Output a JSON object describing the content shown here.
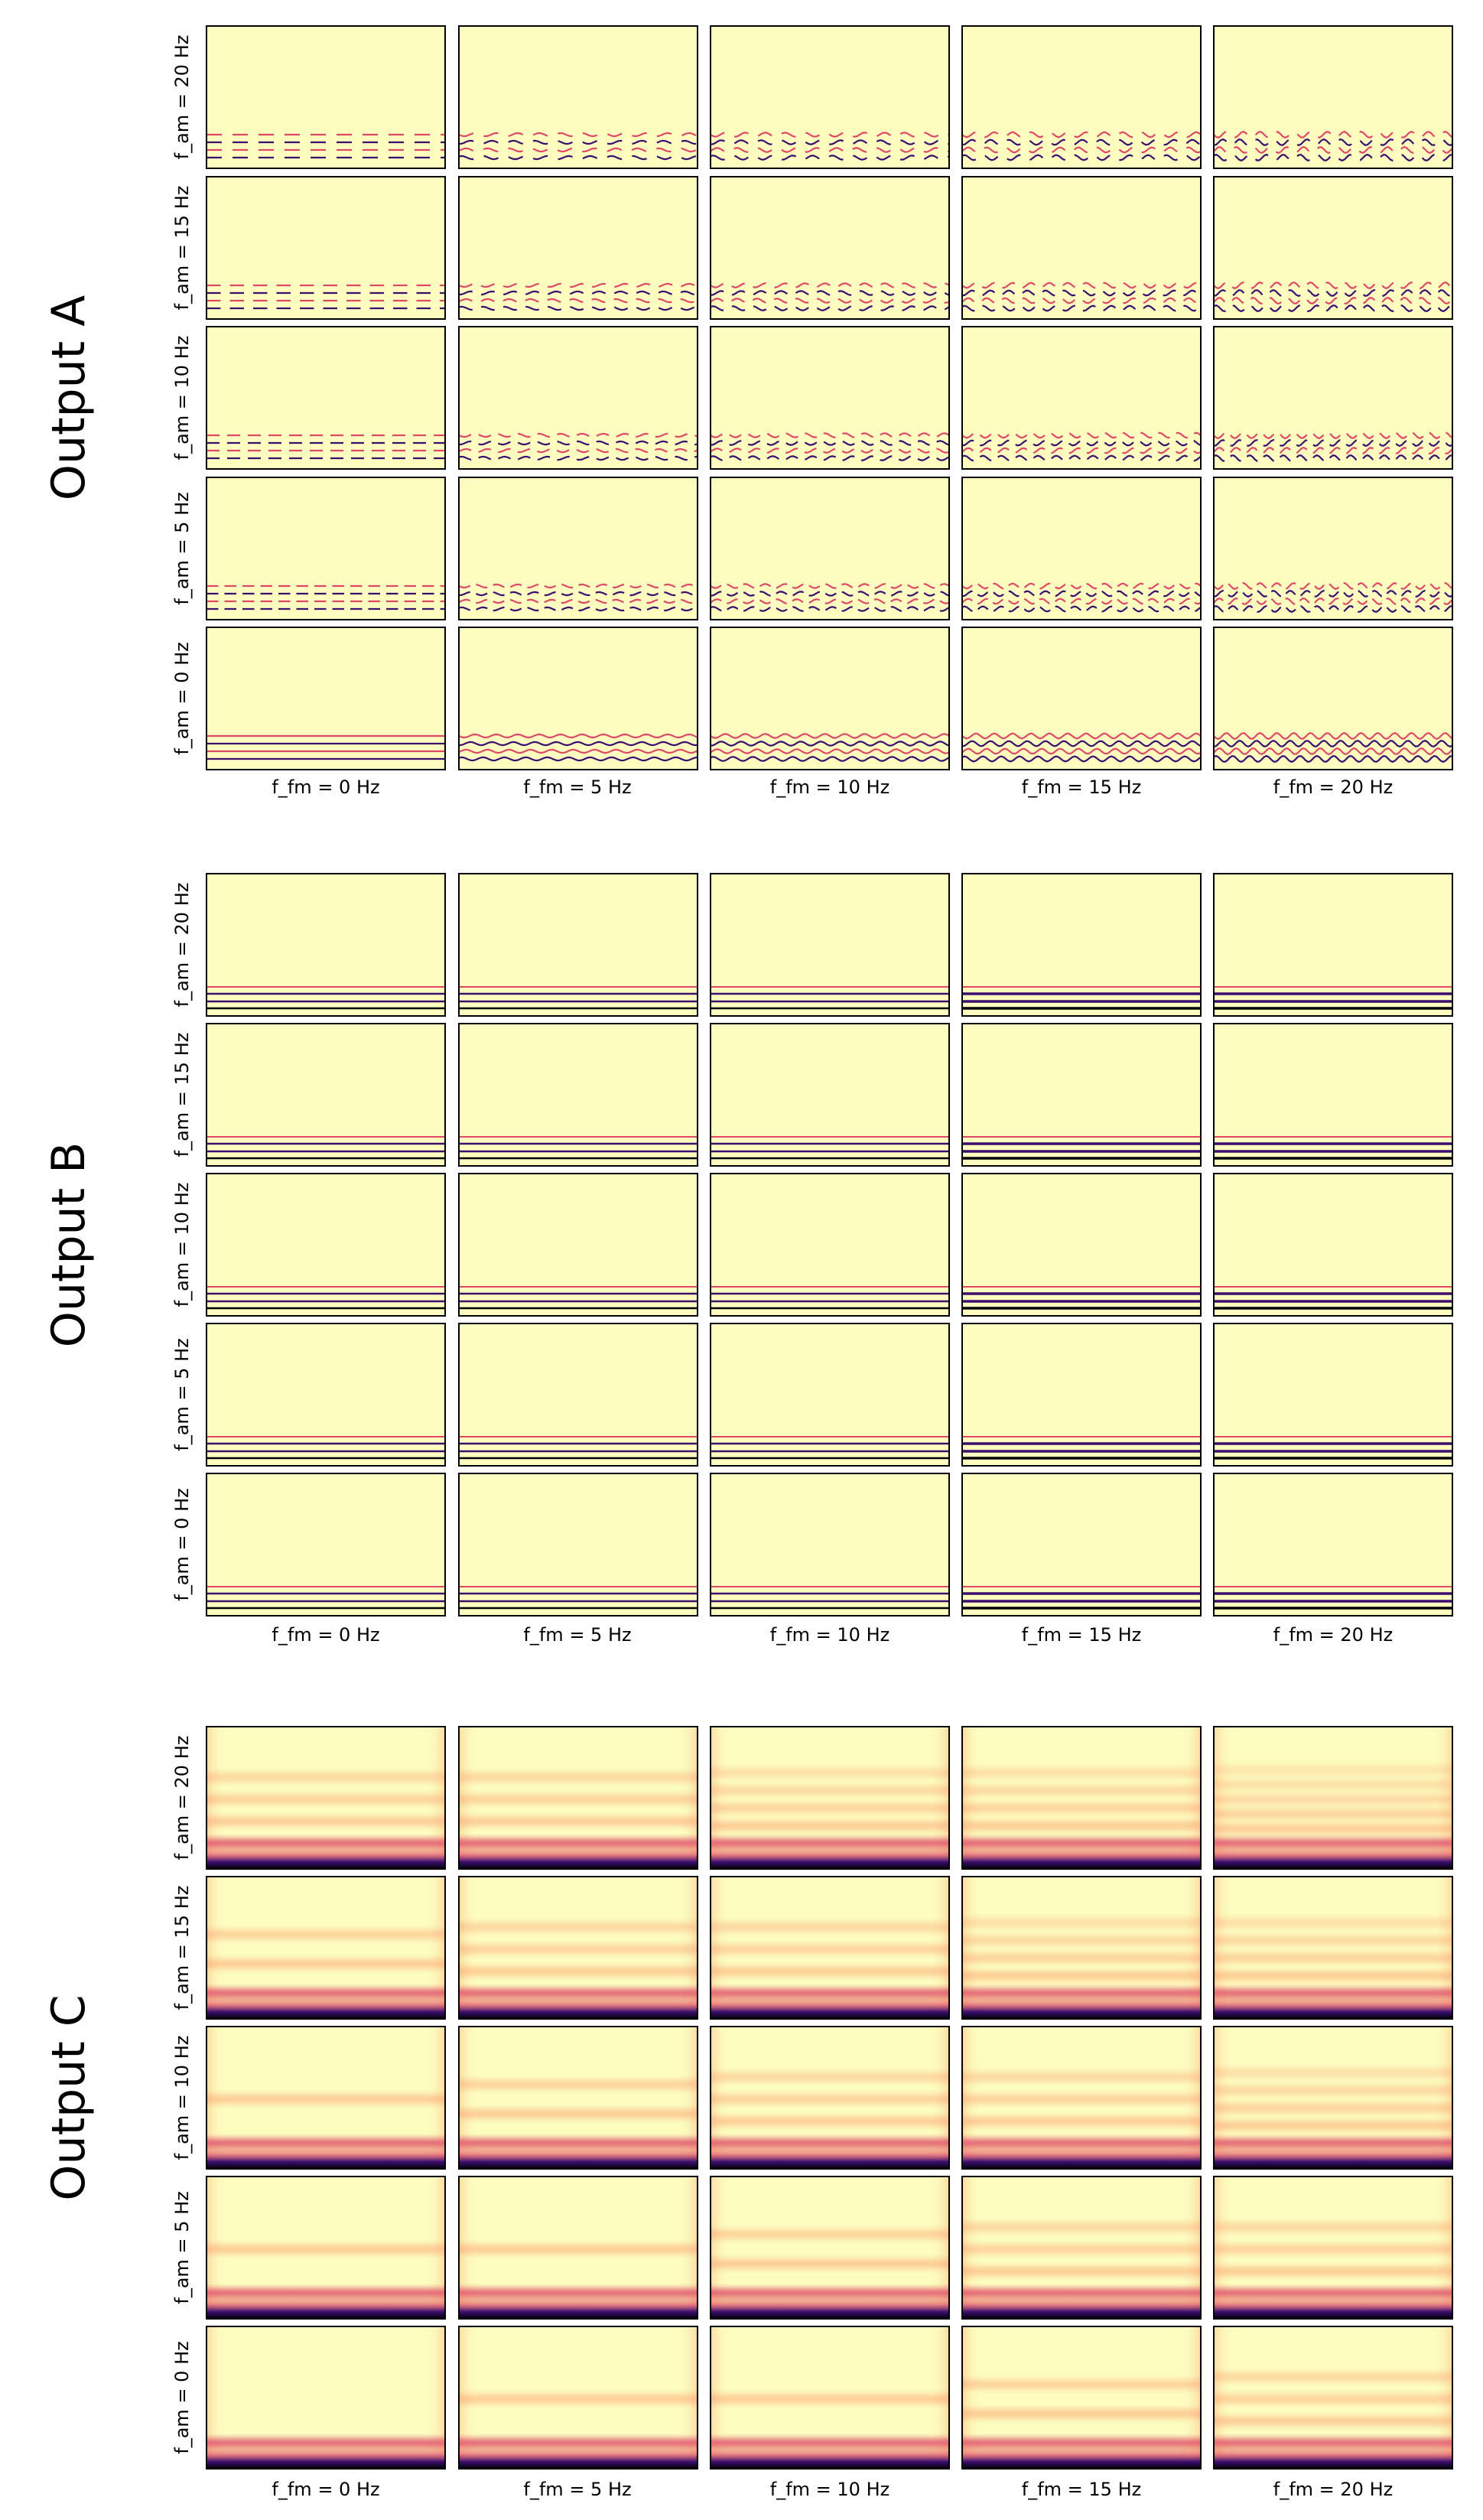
{
  "chart_data": {
    "type": "heatmap",
    "description_free": true,
    "colormap": "magma",
    "colors": {
      "background": "#fcfdbf",
      "band_mid": "#fd9a6a",
      "band_strong": "#de4968",
      "band_dark": "#8c2981",
      "band_darkest": "#3b0f70",
      "band_black": "#000004",
      "frame": "#000000"
    },
    "col_labels": [
      "f_fm = 0 Hz",
      "f_fm = 5 Hz",
      "f_fm = 10 Hz",
      "f_fm = 15 Hz",
      "f_fm = 20 Hz"
    ],
    "row_labels": [
      "f_am = 20 Hz",
      "f_am = 15 Hz",
      "f_am = 10 Hz",
      "f_am = 5 Hz",
      "f_am = 0 Hz"
    ],
    "f_fm_values": [
      0,
      5,
      10,
      15,
      20
    ],
    "f_am_values": [
      20,
      15,
      10,
      5,
      0
    ],
    "panels": [
      {
        "title": "Output A",
        "style": "thin-modulated-lines"
      },
      {
        "title": "Output B",
        "style": "thin-steady-lines"
      },
      {
        "title": "Output C",
        "style": "diffuse-bands"
      }
    ]
  }
}
